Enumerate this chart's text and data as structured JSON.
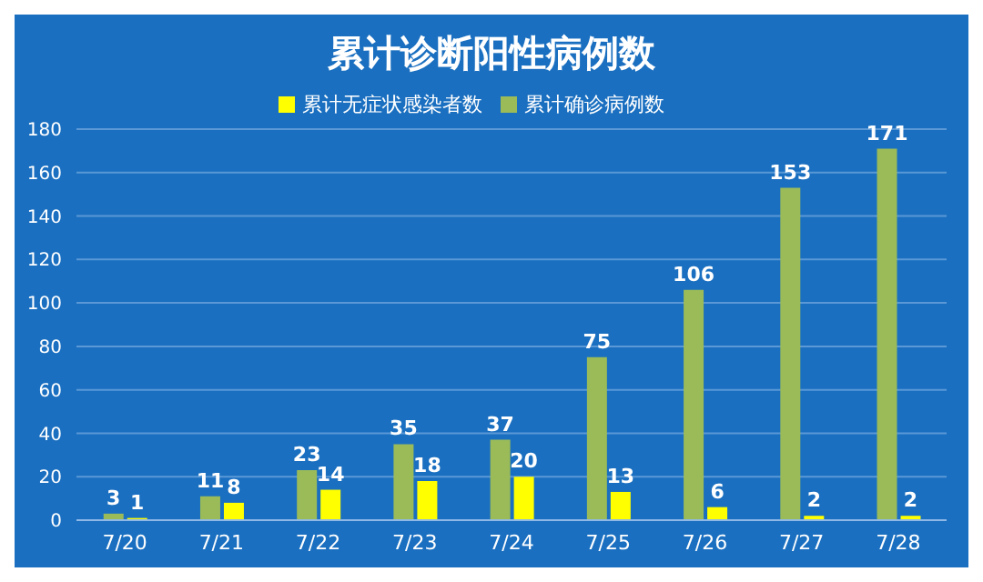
{
  "chart_data": {
    "type": "bar",
    "title": "累计诊断阳性病例数",
    "categories": [
      "7/20",
      "7/21",
      "7/22",
      "7/23",
      "7/24",
      "7/25",
      "7/26",
      "7/27",
      "7/28"
    ],
    "series": [
      {
        "name": "累计确诊病例数",
        "color": "#9bbb59",
        "values": [
          3,
          11,
          23,
          35,
          37,
          75,
          106,
          153,
          171
        ]
      },
      {
        "name": "累计无症状感染者数",
        "color": "#ffff00",
        "values": [
          1,
          8,
          14,
          18,
          20,
          13,
          6,
          2,
          2
        ]
      }
    ],
    "ylim": [
      0,
      180
    ],
    "yticks": [
      0,
      20,
      40,
      60,
      80,
      100,
      120,
      140,
      160,
      180
    ],
    "grid": "y",
    "legend": "top",
    "data_labels": true
  }
}
